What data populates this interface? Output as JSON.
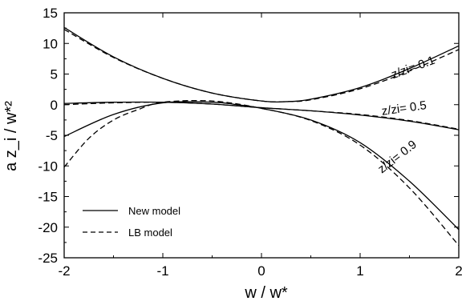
{
  "chart_data": {
    "type": "line",
    "xlabel": "w / w*",
    "ylabel": "a z_i / w*²",
    "xlim": [
      -2,
      2
    ],
    "ylim": [
      -25,
      15
    ],
    "x_ticks": [
      "-2",
      "-1",
      "0",
      "1",
      "2"
    ],
    "y_ticks": [
      "15",
      "10",
      "5",
      "0",
      "-5",
      "-10",
      "-15",
      "-20",
      "-25"
    ],
    "legend": {
      "placement": "bottom-left",
      "entries": [
        {
          "label": "New model",
          "style": "solid"
        },
        {
          "label": "LB model",
          "style": "dashed"
        }
      ]
    },
    "curve_labels": [
      {
        "text": "z/zi= 0.1",
        "x": 1.55,
        "y": 5.5
      },
      {
        "text": "z/zi= 0.5",
        "x": 1.45,
        "y": -1.2
      },
      {
        "text": "z/zi= 0.9",
        "x": 1.4,
        "y": -9.0
      }
    ],
    "series": [
      {
        "curve": "0.1",
        "model": "new",
        "style": "solid",
        "x": [
          -2,
          -1.5,
          -1,
          -0.5,
          0,
          0.25,
          0.5,
          1,
          1.5,
          2
        ],
        "y": [
          12.6,
          7.8,
          4.3,
          1.9,
          0.6,
          0.5,
          0.9,
          2.8,
          5.9,
          9.6
        ]
      },
      {
        "curve": "0.1",
        "model": "LB",
        "style": "dashed",
        "x": [
          -2,
          -1.5,
          -1,
          -0.5,
          0,
          0.25,
          0.5,
          1,
          1.5,
          2
        ],
        "y": [
          12.3,
          7.7,
          4.3,
          1.9,
          0.6,
          0.5,
          0.8,
          2.6,
          5.5,
          9.0
        ]
      },
      {
        "curve": "0.5",
        "model": "new",
        "style": "solid",
        "x": [
          -2,
          -1.5,
          -1,
          -0.5,
          0,
          0.5,
          1,
          1.5,
          2
        ],
        "y": [
          0.2,
          0.4,
          0.4,
          0.1,
          -0.5,
          -1.0,
          -1.7,
          -2.7,
          -4.1
        ]
      },
      {
        "curve": "0.5",
        "model": "LB",
        "style": "dashed",
        "x": [
          -2,
          -1.5,
          -1,
          -0.5,
          0,
          0.5,
          1,
          1.5,
          2
        ],
        "y": [
          0.0,
          0.3,
          0.4,
          0.1,
          -0.5,
          -1.0,
          -1.6,
          -2.6,
          -4.0
        ]
      },
      {
        "curve": "0.9",
        "model": "new",
        "style": "solid",
        "x": [
          -2,
          -1.5,
          -1,
          -0.5,
          -0.25,
          0,
          0.5,
          1,
          1.5,
          2
        ],
        "y": [
          -5.2,
          -1.6,
          0.3,
          0.4,
          0.0,
          -0.6,
          -2.5,
          -6.2,
          -12.5,
          -20.4
        ]
      },
      {
        "curve": "0.9",
        "model": "LB",
        "style": "dashed",
        "x": [
          -2,
          -1.75,
          -1.5,
          -1.25,
          -1,
          -0.5,
          0,
          0.5,
          1,
          1.5,
          2
        ],
        "y": [
          -10.2,
          -5.5,
          -2.5,
          -0.8,
          0.4,
          0.6,
          -0.6,
          -2.6,
          -6.6,
          -13.6,
          -23.0
        ]
      }
    ]
  }
}
